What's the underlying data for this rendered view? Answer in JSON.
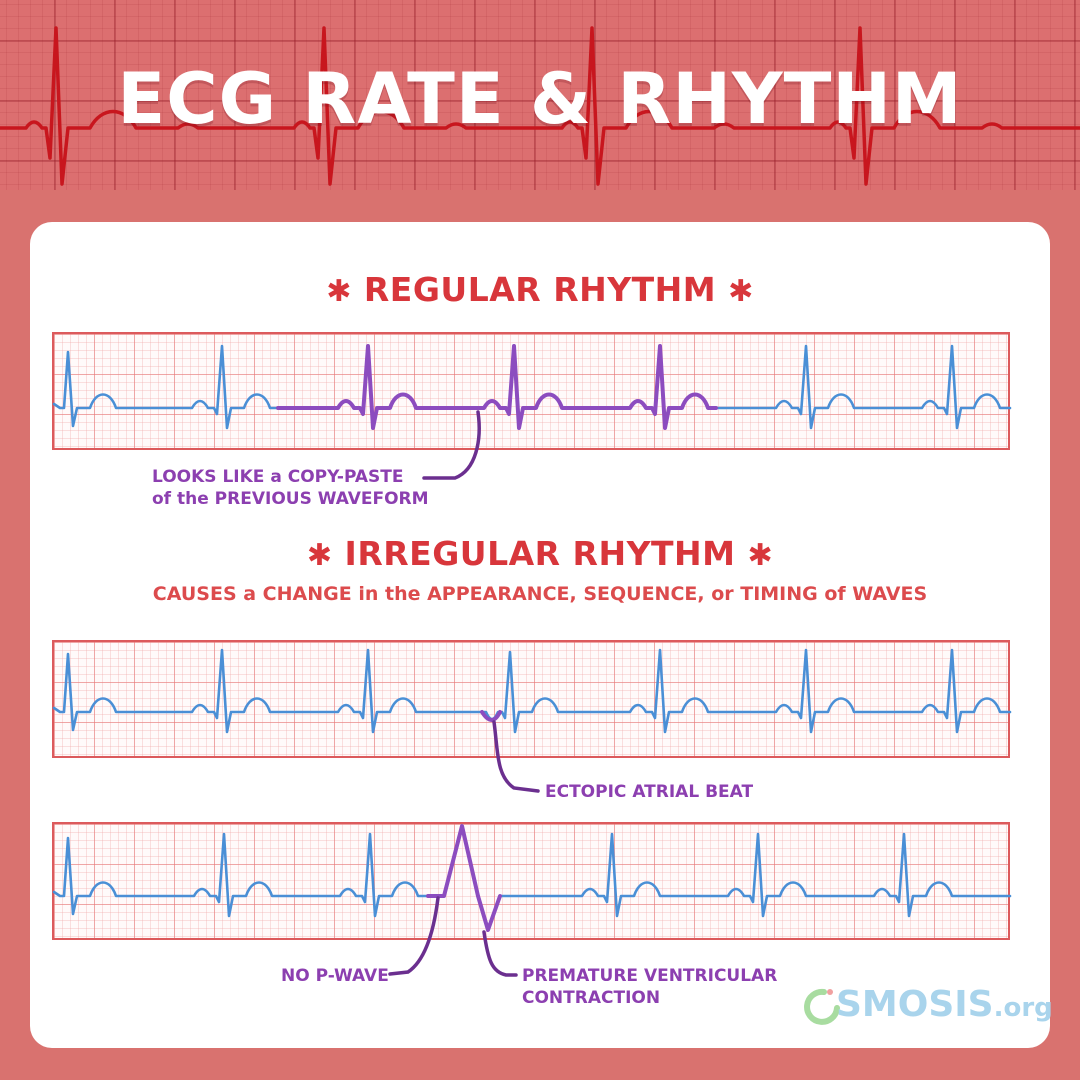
{
  "title": "ECG RATE & RHYTHM",
  "regular": {
    "heading": "REGULAR RHYTHM",
    "star": "✱",
    "annotation_line1": "LOOKS LIKE a COPY-PASTE",
    "annotation_line2": "of the PREVIOUS WAVEFORM"
  },
  "irregular": {
    "heading": "IRREGULAR RHYTHM",
    "star": "✱",
    "subtitle": "CAUSES a CHANGE in the APPEARANCE, SEQUENCE, or TIMING of WAVES",
    "ectopic_label": "ECTOPIC ATRIAL BEAT",
    "no_p_wave_label": "NO P-WAVE",
    "pvc_label_line1": "PREMATURE VENTRICULAR",
    "pvc_label_line2": "CONTRACTION"
  },
  "logo": {
    "name": "OSMOSIS",
    "suffix": ".org"
  },
  "colors": {
    "background": "#d9726f",
    "heading": "#d8363b",
    "trace_normal": "#4a8fd6",
    "trace_highlight": "#8c4cbf",
    "annotation": "#8c3fb0",
    "header_trace": "#c8161e"
  }
}
